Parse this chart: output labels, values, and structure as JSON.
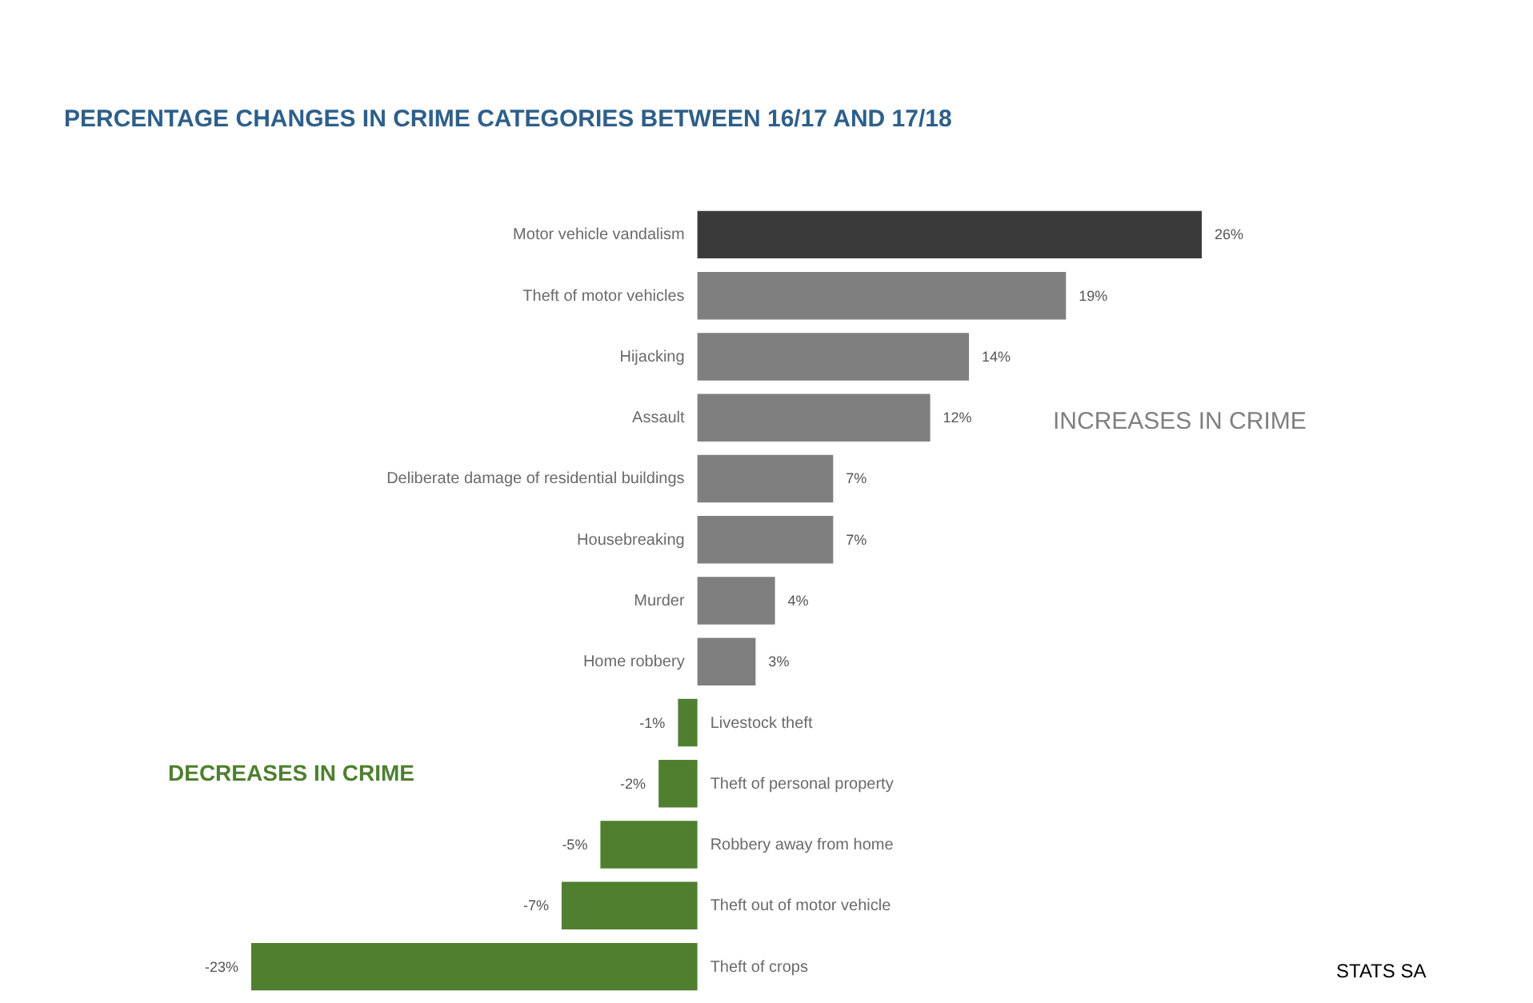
{
  "chart_data": {
    "type": "bar",
    "orientation": "horizontal",
    "title": "PERCENTAGE CHANGES IN CRIME CATEGORIES BETWEEN 16/17 AND 17/18",
    "categories": [
      "Motor vehicle vandalism",
      "Theft of motor vehicles",
      "Hijacking",
      "Assault",
      "Deliberate damage of residential buildings",
      "Housebreaking",
      "Murder",
      "Home robbery",
      "Livestock theft",
      "Theft of personal property",
      "Robbery away from home",
      "Theft out of motor vehicle",
      "Theft of crops"
    ],
    "values": [
      26,
      19,
      14,
      12,
      7,
      7,
      4,
      3,
      -1,
      -2,
      -5,
      -7,
      -23
    ],
    "value_labels": [
      "26%",
      "19%",
      "14%",
      "12%",
      "7%",
      "7%",
      "4%",
      "3%",
      "-1%",
      "-2%",
      "-5%",
      "-7%",
      "-23%"
    ],
    "colors": [
      "#3a3a3a",
      "#7f7f7f",
      "#7f7f7f",
      "#7f7f7f",
      "#7f7f7f",
      "#7f7f7f",
      "#7f7f7f",
      "#7f7f7f",
      "#4f7f2f",
      "#4f7f2f",
      "#4f7f2f",
      "#4f7f2f",
      "#4f7f2f"
    ],
    "annotations": [
      "INCREASES IN CRIME",
      "DECREASES IN CRIME",
      "STATS SA"
    ]
  }
}
